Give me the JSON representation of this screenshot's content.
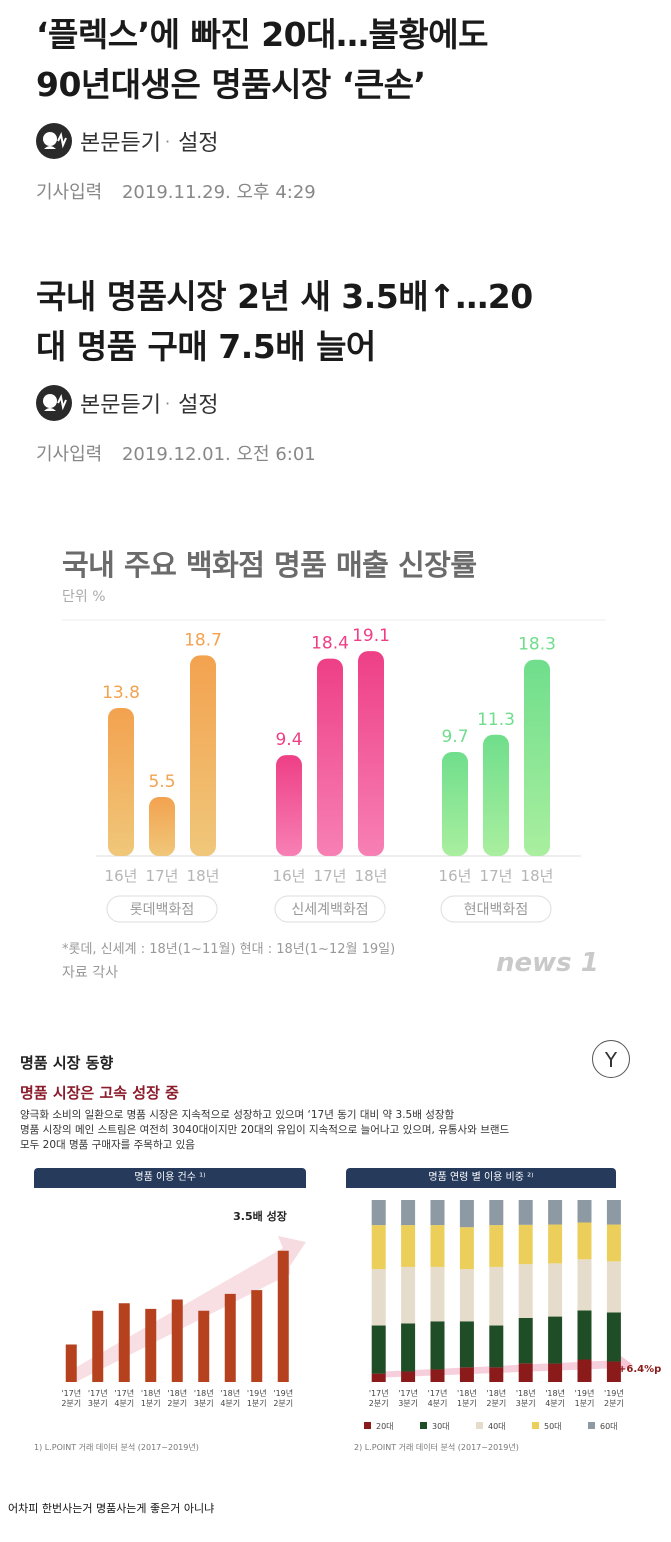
{
  "articles": [
    {
      "headline_1": "‘플렉스’에 빠진 20대…불황에도",
      "headline_2": "90년대생은 명품시장 ‘큰손’",
      "listen": "본문듣기",
      "sep": "·",
      "settings": "설정",
      "date_label": "기사입력",
      "date": "2019.11.29. 오후 4:29"
    },
    {
      "headline_1": "국내 명품시장 2년 새 3.5배↑…20",
      "headline_2": "대 명품 구매 7.5배 늘어",
      "listen": "본문듣기",
      "sep": "·",
      "settings": "설정",
      "date_label": "기사입력",
      "date": "2019.12.01. 오전 6:01"
    }
  ],
  "chart1_meta": {
    "note": "*롯데, 신세계 : 18년(1~11월) 현대 : 18년(1~12월 19일)",
    "source": "자료  각사",
    "logo": "news 1"
  },
  "report": {
    "logo": "Y",
    "title": "명품 시장 동향",
    "subtitle": "명품 시장은 고속 성장 중",
    "body_1": "양극화 소비의 일환으로 명품 시장은 지속적으로 성장하고 있으며 ‘17년 동기 대비 약 3.5배 성장함",
    "body_2": "명품 시장의 메인 스트림은 여전히 3040대이지만 20대의 유입이 지속적으로 늘어나고 있으며, 유통사와 브랜드",
    "body_3": "모두 20대 명품 구매자를 주목하고 있음",
    "panel_left": "명품 이용 건수 ¹⁾",
    "panel_right": "명품 연령 별 이용 비중 ²⁾",
    "growth_label": "3.5배 성장",
    "trend_label": "+6.4%p",
    "foot_left": "1) L.POINT 거래 데이터 분석 (2017~2019년)",
    "foot_right": "2) L.POINT 거래 데이터 분석 (2017~2019년)"
  },
  "caption": "어차피 한번사는거 명품사는게 좋은거 아니냐",
  "chart_data": [
    {
      "type": "bar",
      "title": "국내 주요 백화점 명품 매출 신장률",
      "ylabel": "단위  %",
      "groups": [
        "롯데백화점",
        "신세계백화점",
        "현대백화점"
      ],
      "categories": [
        "16년",
        "17년",
        "18년"
      ],
      "series": [
        {
          "name": "롯데백화점",
          "values": [
            13.8,
            5.5,
            18.7
          ],
          "color_top": "#f3a24f",
          "color_bottom": "#f0c77a"
        },
        {
          "name": "신세계백화점",
          "values": [
            9.4,
            18.4,
            19.1
          ],
          "color_top": "#ee3f86",
          "color_bottom": "#f780b4"
        },
        {
          "name": "현대백화점",
          "values": [
            9.7,
            11.3,
            18.3
          ],
          "color_top": "#6fde8c",
          "color_bottom": "#a9ef9f"
        }
      ],
      "ylim": [
        0,
        22
      ]
    },
    {
      "type": "bar",
      "title": "명품 이용 건수",
      "categories": [
        "'17년 2분기",
        "'17년 3분기",
        "'17년 4분기",
        "'18년 1분기",
        "'18년 2분기",
        "'18년 3분기",
        "'18년 4분기",
        "'19년 1분기",
        "'19년 2분기"
      ],
      "values": [
        1.0,
        1.9,
        2.1,
        1.95,
        2.2,
        1.9,
        2.35,
        2.45,
        3.5
      ],
      "annotation": "3.5배 성장",
      "color": "#b5411f",
      "ylim": [
        0,
        4
      ]
    },
    {
      "type": "bar",
      "stacked": true,
      "title": "명품 연령 별 이용 비중",
      "categories": [
        "'17년 2분기",
        "'17년 3분기",
        "'17년 4분기",
        "'18년 1분기",
        "'18년 2분기",
        "'18년 3분기",
        "'18년 4분기",
        "'19년 1분기",
        "'19년 2분기"
      ],
      "series": [
        {
          "name": "20대",
          "color": "#8b1a1a",
          "values": [
            4,
            5,
            6,
            7,
            7,
            9,
            9,
            11,
            10
          ]
        },
        {
          "name": "30대",
          "color": "#1f4d26",
          "values": [
            23,
            23,
            23,
            22,
            20,
            22,
            23,
            24,
            24
          ]
        },
        {
          "name": "40대",
          "color": "#e5dccb",
          "values": [
            27,
            27,
            26,
            25,
            28,
            26,
            26,
            25,
            25
          ]
        },
        {
          "name": "50대",
          "color": "#eccf5a",
          "values": [
            21,
            20,
            20,
            20,
            20,
            19,
            19,
            18,
            18
          ]
        },
        {
          "name": "60대",
          "color": "#8e9aa3",
          "values": [
            12,
            12,
            12,
            13,
            12,
            12,
            12,
            11,
            12
          ]
        }
      ],
      "annotation": "+6.4%p"
    }
  ]
}
